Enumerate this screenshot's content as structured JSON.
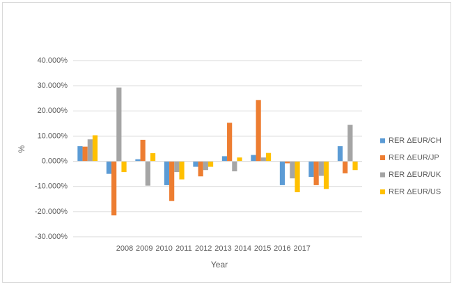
{
  "chart_data": {
    "type": "bar",
    "categories": [
      "2008",
      "2009",
      "2010",
      "2011",
      "2012",
      "2013",
      "2014",
      "2015",
      "2016",
      "2017"
    ],
    "x_label": "Year",
    "y_label": "%",
    "series": [
      {
        "name": "RER ΔEUR/CH",
        "color": "#5b9bd5",
        "values": [
          6,
          -5,
          0.8,
          -9.5,
          -2.2,
          2,
          2.5,
          -9.5,
          -6.2,
          6
        ]
      },
      {
        "name": "RER ΔEUR/JP",
        "color": "#ed7d31",
        "values": [
          5.8,
          -21.5,
          8.5,
          -15.8,
          -6,
          15.3,
          24.3,
          -0.8,
          -9.5,
          -4.8
        ]
      },
      {
        "name": "RER ΔEUR/UK",
        "color": "#a5a5a5",
        "values": [
          8.7,
          29.3,
          -9.7,
          -4.3,
          -3.5,
          -4,
          1.5,
          -6.8,
          -5.8,
          14.5
        ]
      },
      {
        "name": "RER ΔEUR/US",
        "color": "#ffc000",
        "values": [
          10.3,
          -4.3,
          3.2,
          -7.2,
          -2.2,
          1.5,
          3.3,
          -12.3,
          -11,
          -3.5
        ]
      }
    ],
    "ylim": [
      -30,
      40
    ],
    "yticks": [
      {
        "value": -30,
        "label": "-30.000%"
      },
      {
        "value": -20,
        "label": "-20.000%"
      },
      {
        "value": -10,
        "label": "-10.000%"
      },
      {
        "value": 0,
        "label": "0.000%"
      },
      {
        "value": 10,
        "label": "10.000%"
      },
      {
        "value": 20,
        "label": "20.000%"
      },
      {
        "value": 30,
        "label": "30.000%"
      },
      {
        "value": 40,
        "label": "40.000%"
      }
    ],
    "grid": true,
    "legend": "right"
  }
}
